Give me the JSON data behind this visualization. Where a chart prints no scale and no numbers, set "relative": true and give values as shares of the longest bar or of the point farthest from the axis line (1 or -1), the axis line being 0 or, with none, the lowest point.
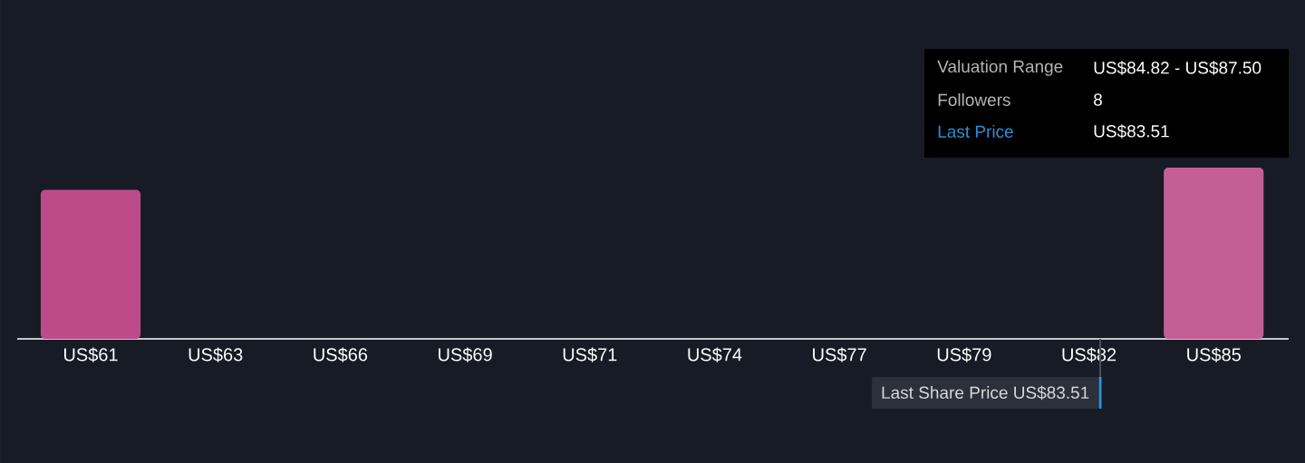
{
  "chart_data": {
    "type": "bar",
    "relative": true,
    "categories": [
      "US$61",
      "US$63",
      "US$66",
      "US$69",
      "US$71",
      "US$74",
      "US$77",
      "US$79",
      "US$82",
      "US$85"
    ],
    "values": [
      0.87,
      0,
      0,
      0,
      0,
      0,
      0,
      0,
      0,
      1
    ],
    "colors": [
      "#bd4b8a",
      "#bd4b8a",
      "#bd4b8a",
      "#bd4b8a",
      "#bd4b8a",
      "#bd4b8a",
      "#bd4b8a",
      "#bd4b8a",
      "#bd4b8a",
      "#c45f96"
    ],
    "annotations": [
      "Valuation Range",
      "US$84.82 - US$87.50",
      "Followers",
      "8",
      "Last Price",
      "US$83.51",
      "Last Share Price US$83.51"
    ]
  }
}
